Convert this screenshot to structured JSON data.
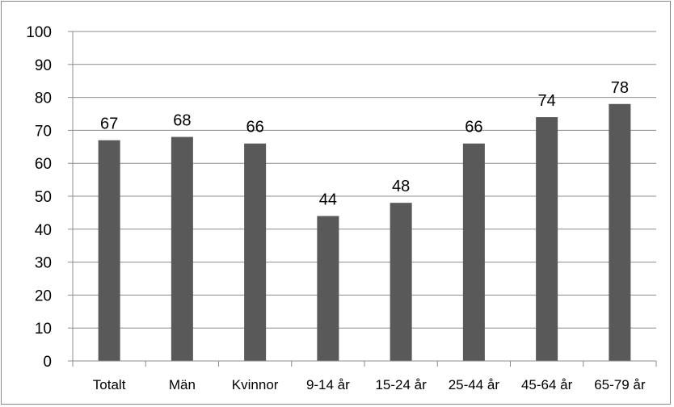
{
  "chart_data": {
    "type": "bar",
    "categories": [
      "Totalt",
      "Män",
      "Kvinnor",
      "9-14 år",
      "15-24 år",
      "25-44 år",
      "45-64 år",
      "65-79 år"
    ],
    "values": [
      67,
      68,
      66,
      44,
      48,
      66,
      74,
      78
    ],
    "data_labels": [
      "67",
      "68",
      "66",
      "44",
      "48",
      "66",
      "74",
      "78"
    ],
    "ylim": [
      0,
      100
    ],
    "y_ticks": [
      0,
      10,
      20,
      30,
      40,
      50,
      60,
      70,
      80,
      90,
      100
    ],
    "grid": true,
    "legend": "none",
    "colors": {
      "bar": "#595959",
      "grid": "#8c8c8c",
      "axis": "#8c8c8c"
    }
  }
}
